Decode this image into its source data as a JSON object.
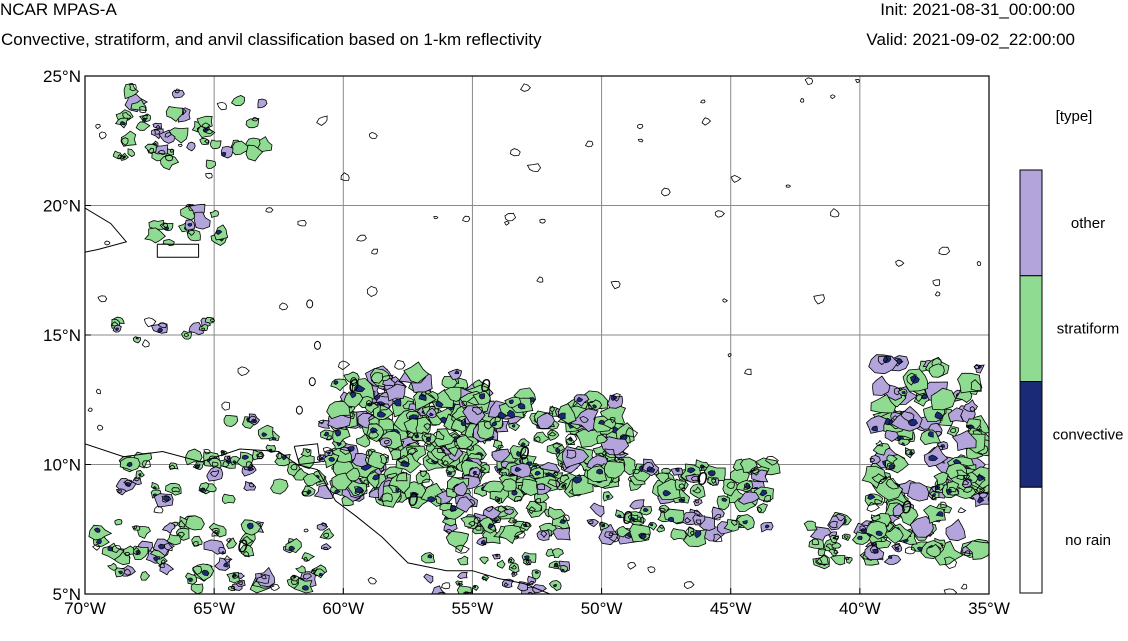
{
  "header": {
    "title": "NCAR MPAS-A",
    "subtitle": "Convective, stratiform, and anvil classification based on 1-km reflectivity",
    "init": "Init: 2021-08-31_00:00:00",
    "valid": "Valid: 2021-09-02_22:00:00"
  },
  "map": {
    "lon_range": [
      -70,
      -35
    ],
    "lat_range": [
      5,
      25
    ],
    "x_ticks": [
      {
        "lon": -70,
        "label": "70°W"
      },
      {
        "lon": -65,
        "label": "65°W"
      },
      {
        "lon": -60,
        "label": "60°W"
      },
      {
        "lon": -55,
        "label": "55°W"
      },
      {
        "lon": -50,
        "label": "50°W"
      },
      {
        "lon": -45,
        "label": "45°W"
      },
      {
        "lon": -40,
        "label": "40°W"
      },
      {
        "lon": -35,
        "label": "35°W"
      }
    ],
    "y_ticks": [
      {
        "lat": 25,
        "label": "25°N"
      },
      {
        "lat": 20,
        "label": "20°N"
      },
      {
        "lat": 15,
        "label": "15°N"
      },
      {
        "lat": 10,
        "label": "10°N"
      },
      {
        "lat": 5,
        "label": "5°N"
      }
    ],
    "grid": true,
    "contour_labels": [
      {
        "lon": -59.6,
        "lat": 12.8,
        "text": "0"
      },
      {
        "lon": -54.5,
        "lat": 12.8,
        "text": "0"
      },
      {
        "lon": -53.0,
        "lat": 10.2,
        "text": "0"
      },
      {
        "lon": -57.3,
        "lat": 8.4,
        "text": "0"
      },
      {
        "lon": -63.9,
        "lat": 6.6,
        "text": "0"
      },
      {
        "lon": -49.0,
        "lat": 7.7,
        "text": "0"
      },
      {
        "lon": -46.1,
        "lat": 9.2,
        "text": "0"
      },
      {
        "lon": -38.2,
        "lat": 8.1,
        "text": "0"
      }
    ]
  },
  "legend": {
    "title": "[type]",
    "items": [
      {
        "label": "other",
        "color": "#b3a5db"
      },
      {
        "label": "stratiform",
        "color": "#8fdb91"
      },
      {
        "label": "convective",
        "color": "#1b2a77"
      },
      {
        "label": "no rain",
        "color": "#ffffff"
      }
    ]
  },
  "colors": {
    "stratiform": "#8fdb91",
    "other": "#b3a5db",
    "convective": "#1b2a77",
    "grid": "#8a8a8a"
  }
}
